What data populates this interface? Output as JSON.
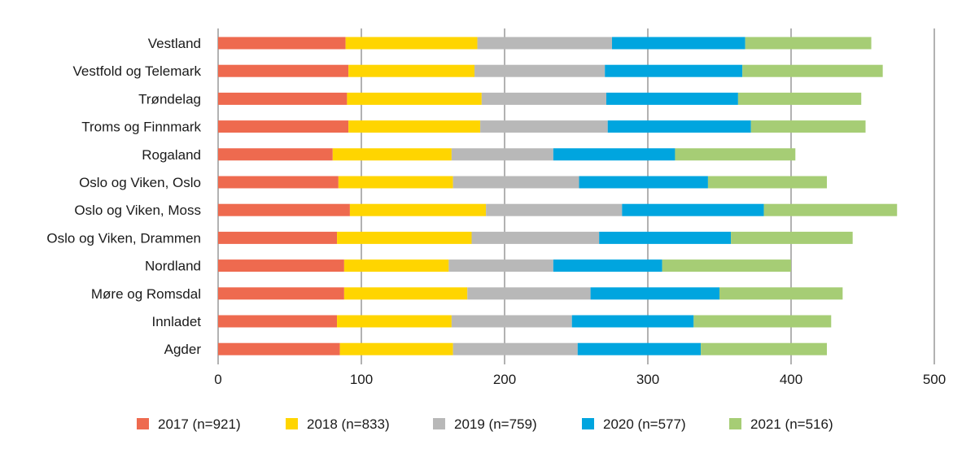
{
  "chart_data": {
    "type": "bar",
    "orientation": "horizontal",
    "stacked": true,
    "title": "",
    "xlabel": "",
    "ylabel": "",
    "xlim": [
      0,
      500
    ],
    "x_ticks": [
      0,
      100,
      200,
      300,
      400,
      500
    ],
    "grid": true,
    "legend_position": "bottom",
    "categories": [
      "Vestland",
      "Vestfold og Telemark",
      "Trøndelag",
      "Troms og Finnmark",
      "Rogaland",
      "Oslo og Viken, Oslo",
      "Oslo og Viken, Moss",
      "Oslo og Viken, Drammen",
      "Nordland",
      "Møre og Romsdal",
      "Innladet",
      "Agder"
    ],
    "series": [
      {
        "name": "2017 (n=921)",
        "color": "#EE6A4F",
        "values": [
          89,
          91,
          90,
          91,
          80,
          84,
          92,
          83,
          88,
          88,
          83,
          85
        ]
      },
      {
        "name": "2018 (n=833)",
        "color": "#FFD500",
        "values": [
          92,
          88,
          94,
          92,
          83,
          80,
          95,
          94,
          73,
          86,
          80,
          79
        ]
      },
      {
        "name": "2019 (n=759)",
        "color": "#B8B8B8",
        "values": [
          94,
          91,
          87,
          89,
          71,
          88,
          95,
          89,
          73,
          86,
          84,
          87
        ]
      },
      {
        "name": "2020 (n=577)",
        "color": "#00A5DF",
        "values": [
          93,
          96,
          92,
          100,
          85,
          90,
          99,
          92,
          76,
          90,
          85,
          86
        ]
      },
      {
        "name": "2021 (n=516)",
        "color": "#A6CD75",
        "values": [
          88,
          98,
          86,
          80,
          84,
          83,
          93,
          85,
          90,
          86,
          96,
          88
        ]
      }
    ]
  }
}
